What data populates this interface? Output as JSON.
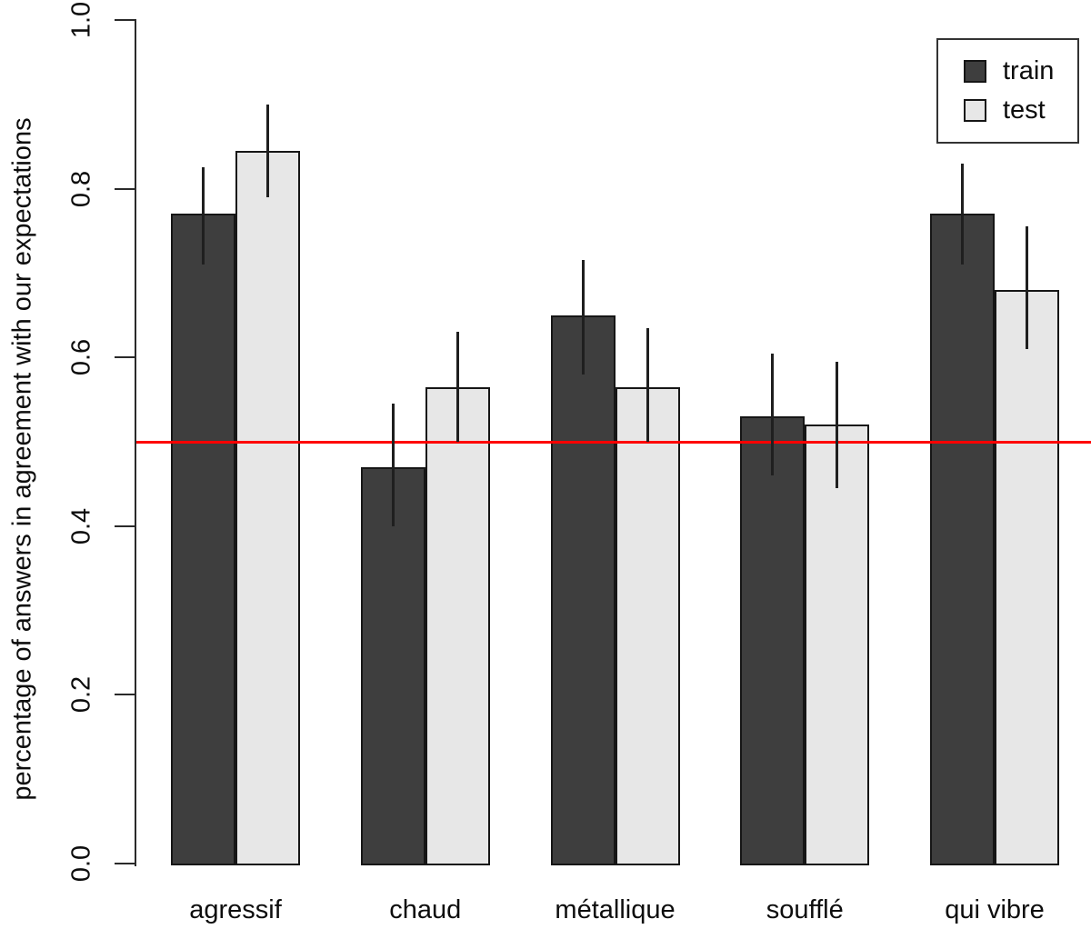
{
  "chart_data": {
    "type": "bar",
    "title": "",
    "categories": [
      "agressif",
      "chaud",
      "métallique",
      "soufflé",
      "qui vibre"
    ],
    "series": [
      {
        "name": "train",
        "color": "#3e3e3e",
        "values": [
          0.77,
          0.47,
          0.65,
          0.53,
          0.77
        ],
        "error_low": [
          0.71,
          0.4,
          0.58,
          0.46,
          0.71
        ],
        "error_high": [
          0.825,
          0.545,
          0.715,
          0.605,
          0.83
        ]
      },
      {
        "name": "test",
        "color": "#e7e7e7",
        "values": [
          0.845,
          0.565,
          0.565,
          0.52,
          0.68
        ],
        "error_low": [
          0.79,
          0.5,
          0.5,
          0.445,
          0.61
        ],
        "error_high": [
          0.9,
          0.63,
          0.635,
          0.595,
          0.755
        ]
      }
    ],
    "xlabel": "",
    "ylabel": "percentage of answers in agreement with our expectations",
    "ylim": [
      0.0,
      1.0
    ],
    "yticks": [
      {
        "value": 0.0,
        "label": "0.0"
      },
      {
        "value": 0.2,
        "label": "0.2"
      },
      {
        "value": 0.4,
        "label": "0.4"
      },
      {
        "value": 0.6,
        "label": "0.6"
      },
      {
        "value": 0.8,
        "label": "0.8"
      },
      {
        "value": 1.0,
        "label": "1.0"
      }
    ],
    "reference_line": {
      "value": 0.5,
      "color": "#ff0000"
    },
    "legend": {
      "position": "top-right",
      "entries": [
        "train",
        "test"
      ]
    },
    "grid": false
  }
}
